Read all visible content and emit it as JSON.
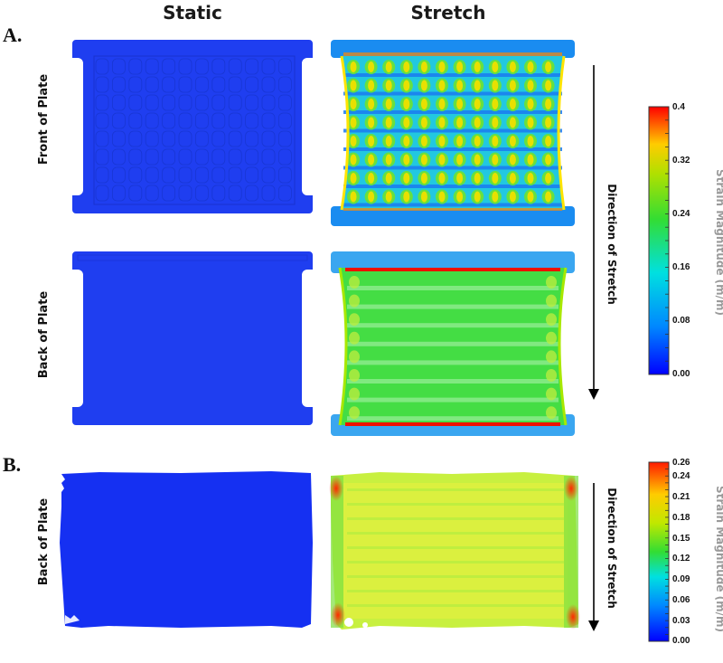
{
  "headers": {
    "static": "Static",
    "stretch": "Stretch"
  },
  "panels": {
    "a": {
      "label": "A.",
      "rows": [
        "Front of Plate",
        "Back of Plate"
      ],
      "direction": "Direction of Stretch",
      "colorbar": {
        "title": "Strain Magnitude (m/m)",
        "ticks": [
          "0.4",
          "0.32",
          "0.24",
          "0.16",
          "0.08",
          "0.00"
        ]
      }
    },
    "b": {
      "label": "B.",
      "rows": [
        "Back of Plate"
      ],
      "direction": "Direction of Stretch",
      "colorbar": {
        "title": "Strain Magnitude (m/m)",
        "ticks": [
          "0.26",
          "0.24",
          "0.21",
          "0.18",
          "0.15",
          "0.12",
          "0.09",
          "0.06",
          "0.03",
          "0.00"
        ]
      }
    }
  },
  "colors": {
    "static_blue": "#1f3ef0",
    "strain_low": "#0010ff",
    "strain_mid": "#33dd33",
    "strain_high": "#ff0000"
  }
}
